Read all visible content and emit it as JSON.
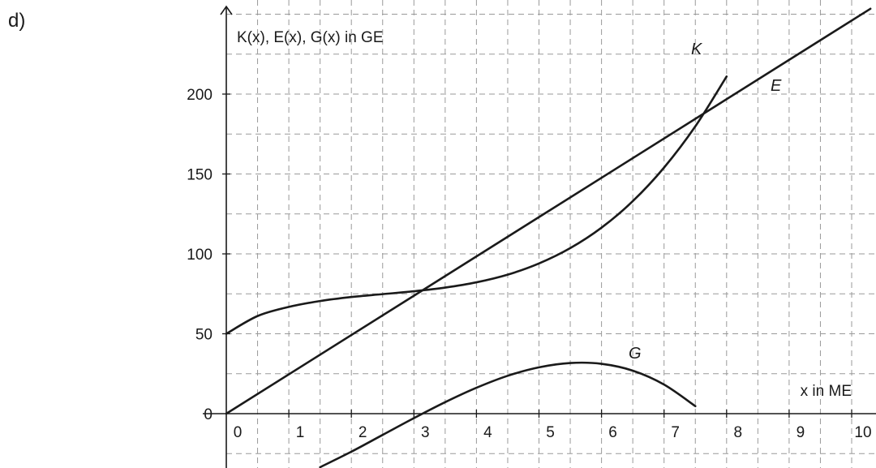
{
  "task_label": "d)",
  "chart_data": {
    "type": "line",
    "title": "",
    "xlabel": "x in ME",
    "ylabel": "K(x), E(x), G(x) in GE",
    "xlim": [
      -0.1,
      10.35
    ],
    "ylim": [
      -30,
      255
    ],
    "x_ticks": [
      0,
      1,
      2,
      3,
      4,
      5,
      6,
      7,
      8,
      9,
      10
    ],
    "x_tick_labels": [
      "0",
      "1",
      "2",
      "3",
      "4",
      "5",
      "6",
      "7",
      "8",
      "9",
      "10"
    ],
    "y_ticks": [
      0,
      50,
      100,
      150,
      200
    ],
    "y_tick_labels": [
      "0",
      "50",
      "100",
      "150",
      "200"
    ],
    "grid": true,
    "grid_style": "dashed",
    "curve_labels": {
      "K": "K",
      "E": "E",
      "G": "G"
    },
    "series": [
      {
        "name": "K",
        "x": [
          0,
          0.5,
          1,
          1.5,
          2,
          2.5,
          3,
          3.5,
          4,
          4.5,
          5,
          5.5,
          6,
          6.5,
          7,
          7.5,
          8
        ],
        "values": [
          50,
          61.1,
          66.8,
          70.5,
          73,
          74.8,
          76.6,
          78.9,
          82.2,
          87,
          94,
          103.6,
          116.4,
          133,
          154,
          179.8,
          211
        ]
      },
      {
        "name": "E",
        "x": [
          0,
          10.3
        ],
        "values": [
          0,
          253.4
        ]
      },
      {
        "name": "G",
        "x": [
          1.5,
          2,
          2.5,
          3,
          3.5,
          4,
          4.5,
          5,
          5.5,
          6,
          6.5,
          7,
          7.5
        ],
        "values": [
          -33.5,
          -23.8,
          -13.3,
          -2.8,
          7.2,
          16.2,
          23.7,
          29,
          31.7,
          31.2,
          26.9,
          18.2,
          4.7
        ]
      }
    ]
  },
  "colors": {
    "curve": "#1a1a1a",
    "grid": "#9a9a9a",
    "axis": "#1a1a1a"
  }
}
